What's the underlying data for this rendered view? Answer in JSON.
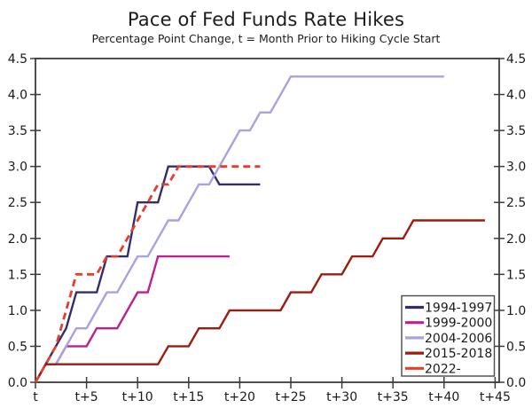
{
  "chart_data": {
    "type": "line",
    "title": "Pace of Fed Funds Rate Hikes",
    "subtitle": "Percentage Point Change, t = Month Prior to Hiking Cycle Start",
    "x_axis": {
      "unit": "months since t (t = month prior to hiking cycle start)",
      "tick_months": [
        0,
        5,
        10,
        15,
        20,
        25,
        30,
        35,
        40,
        45
      ],
      "tick_labels": [
        "t",
        "t+5",
        "t+10",
        "t+15",
        "t+20",
        "t+25",
        "t+30",
        "t+35",
        "t+40",
        "t+45"
      ],
      "xlim": [
        0,
        45.4
      ]
    },
    "y_axis": {
      "ticks": [
        0,
        0.5,
        1.0,
        1.5,
        2.0,
        2.5,
        3.0,
        3.5,
        4.0,
        4.5
      ],
      "tick_labels": [
        "0.0",
        "0.5",
        "1.0",
        "1.5",
        "2.0",
        "2.5",
        "3.0",
        "3.5",
        "4.0",
        "4.5"
      ],
      "ylim": [
        0,
        4.5
      ],
      "labels_on_both_sides": true
    },
    "grid": false,
    "legend": {
      "position": "lower-right"
    },
    "background_color": "#FFFFFF",
    "axis_color": "#3C3C3C",
    "text_color": "#1A1A1A",
    "series": [
      {
        "name": "1994-1997",
        "color": "#322E6E",
        "line_style": "solid",
        "monthly_values": [
          0,
          0.25,
          0.5,
          0.75,
          1.25,
          1.25,
          1.25,
          1.75,
          1.75,
          1.75,
          2.5,
          2.5,
          2.5,
          3.0,
          3.0,
          3.0,
          3.0,
          3.0,
          2.75,
          2.75,
          2.75,
          2.75,
          2.75
        ]
      },
      {
        "name": "1999-2000",
        "color": "#BE1F92",
        "line_style": "solid",
        "monthly_values": [
          0,
          0.25,
          0.25,
          0.5,
          0.5,
          0.5,
          0.75,
          0.75,
          0.75,
          1.0,
          1.25,
          1.25,
          1.75,
          1.75,
          1.75,
          1.75,
          1.75,
          1.75,
          1.75,
          1.75
        ]
      },
      {
        "name": "2004-2006",
        "color": "#A9A1E1",
        "line_style": "solid",
        "monthly_values": [
          0,
          0.25,
          0.25,
          0.5,
          0.75,
          0.75,
          1.0,
          1.25,
          1.25,
          1.5,
          1.75,
          1.75,
          2.0,
          2.25,
          2.25,
          2.5,
          2.75,
          2.75,
          3.0,
          3.25,
          3.5,
          3.5,
          3.75,
          3.75,
          4.0,
          4.25,
          4.25,
          4.25,
          4.25,
          4.25,
          4.25,
          4.25,
          4.25,
          4.25,
          4.25,
          4.25,
          4.25,
          4.25,
          4.25,
          4.25,
          4.25
        ]
      },
      {
        "name": "2015-2018",
        "color": "#9B1C10",
        "line_style": "solid",
        "monthly_values": [
          0,
          0.25,
          0.25,
          0.25,
          0.25,
          0.25,
          0.25,
          0.25,
          0.25,
          0.25,
          0.25,
          0.25,
          0.25,
          0.5,
          0.5,
          0.5,
          0.75,
          0.75,
          0.75,
          1.0,
          1.0,
          1.0,
          1.0,
          1.0,
          1.0,
          1.25,
          1.25,
          1.25,
          1.5,
          1.5,
          1.5,
          1.75,
          1.75,
          1.75,
          2.0,
          2.0,
          2.0,
          2.25,
          2.25,
          2.25,
          2.25,
          2.25,
          2.25,
          2.25,
          2.25
        ]
      },
      {
        "name": "2022-",
        "color": "#E63E2C",
        "line_style": "dashed",
        "monthly_values": [
          0,
          0.25,
          0.5,
          1.0,
          1.5,
          1.5,
          1.5,
          1.75,
          1.75,
          2.0,
          2.25,
          2.5,
          2.75,
          2.75,
          3.0,
          3.0,
          3.0,
          3.0,
          3.0,
          3.0,
          3.0,
          3.0,
          3.0
        ]
      }
    ]
  }
}
